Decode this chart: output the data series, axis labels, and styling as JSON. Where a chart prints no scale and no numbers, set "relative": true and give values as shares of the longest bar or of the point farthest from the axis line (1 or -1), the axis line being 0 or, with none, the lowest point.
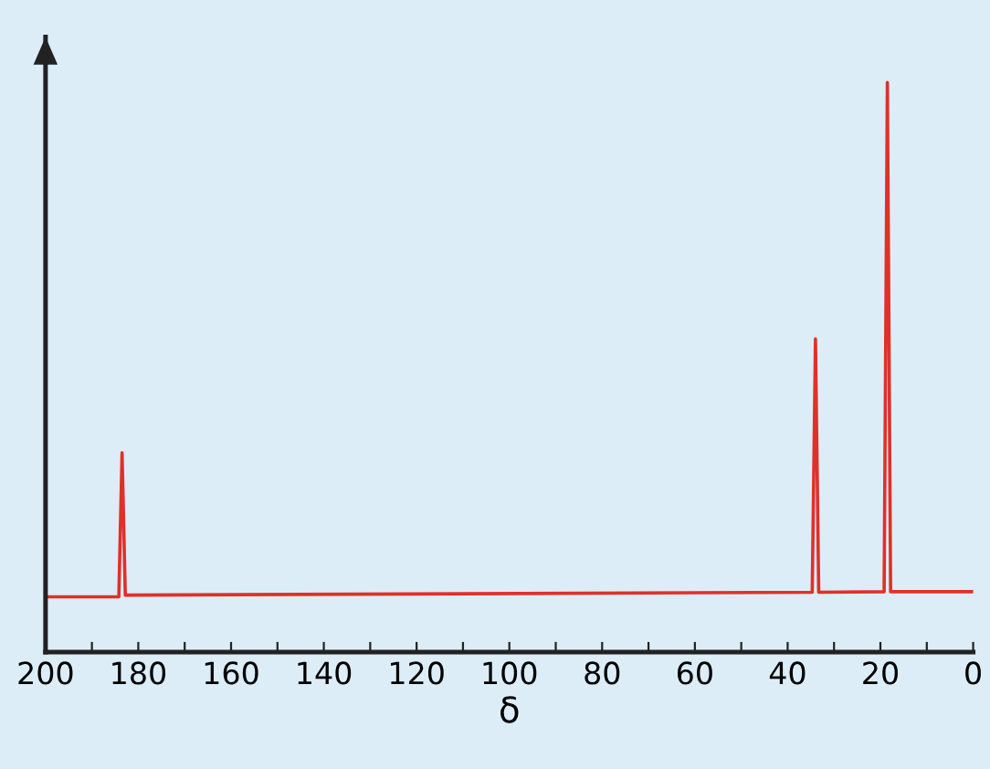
{
  "chart_data": {
    "type": "line",
    "xlabel": "δ",
    "relative": true,
    "x": [
      200,
      184.2,
      183.5,
      182.8,
      34.7,
      34,
      33.3,
      19.2,
      18.5,
      17.8,
      0
    ],
    "series": [
      {
        "color": "#e0302a",
        "values": [
          0.097,
          0.097,
          0.35,
          0.1,
          0.105,
          0.55,
          0.105,
          0.106,
          1.0,
          0.106,
          0.106
        ]
      }
    ],
    "xlim": [
      200,
      0
    ],
    "xticks": [
      200,
      {
        "value": 190,
        "label": null
      },
      180,
      {
        "value": 170,
        "label": null
      },
      160,
      {
        "value": 150,
        "label": null
      },
      140,
      {
        "value": 130,
        "label": null
      },
      120,
      {
        "value": 110,
        "label": null
      },
      100,
      {
        "value": 90,
        "label": null
      },
      80,
      {
        "value": 70,
        "label": null
      },
      60,
      {
        "value": 50,
        "label": null
      },
      40,
      {
        "value": 30,
        "label": null
      },
      20,
      {
        "value": 10,
        "label": null
      },
      0
    ],
    "tick_labels": "x",
    "grid": false,
    "marker": "none",
    "line_style": "solid"
  }
}
